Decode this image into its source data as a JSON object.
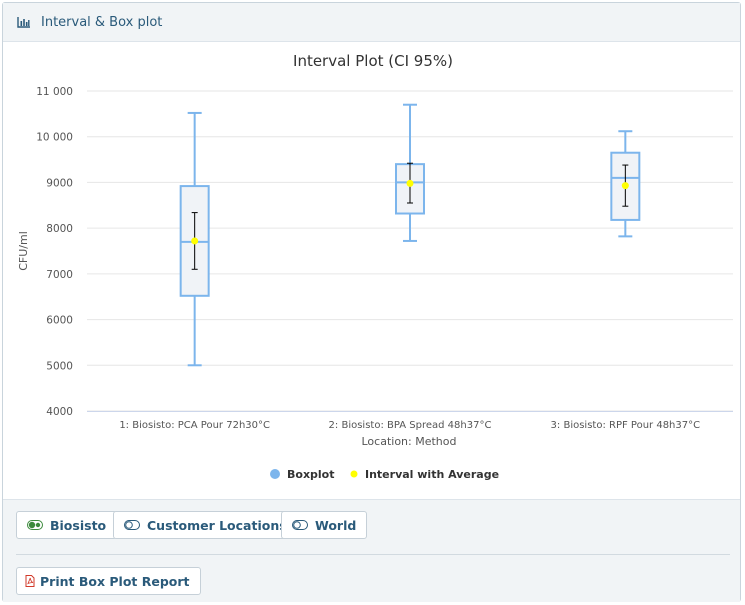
{
  "panel": {
    "title": "Interval & Box plot",
    "icon": "bar-chart-icon"
  },
  "chart_data": {
    "type": "box",
    "title": "Interval Plot (CI 95%)",
    "xlabel": "Location: Method",
    "ylabel": "CFU/ml",
    "ylim": [
      4000,
      11000
    ],
    "yticks": [
      4000,
      5000,
      6000,
      7000,
      8000,
      9000,
      10000,
      11000
    ],
    "ytick_labels": [
      "4000",
      "5000",
      "6000",
      "7000",
      "8000",
      "9000",
      "10 000",
      "11 000"
    ],
    "categories": [
      "1: Biosisto: PCA Pour 72h30°C",
      "2: Biosisto: BPA Spread 48h37°C",
      "3: Biosisto: RPF Pour 48h37°C"
    ],
    "series": [
      {
        "name": "Boxplot",
        "color": "#7cb5ec",
        "boxes": [
          {
            "min": 5000,
            "q1": 6520,
            "median": 7700,
            "q3": 8920,
            "max": 10520
          },
          {
            "min": 7720,
            "q1": 8320,
            "median": 9000,
            "q3": 9400,
            "max": 10700
          },
          {
            "min": 7820,
            "q1": 8180,
            "median": 9100,
            "q3": 9650,
            "max": 10120
          }
        ]
      },
      {
        "name": "Interval with Average",
        "color": "#ffff00",
        "intervals": [
          {
            "mean": 7720,
            "lower": 7100,
            "upper": 8340
          },
          {
            "mean": 8980,
            "lower": 8550,
            "upper": 9420
          },
          {
            "mean": 8930,
            "lower": 8480,
            "upper": 9380
          }
        ]
      }
    ],
    "legend": [
      "Boxplot",
      "Interval with Average"
    ],
    "legend_position": "bottom-center",
    "grid": true
  },
  "filters": [
    {
      "label": "Biosisto",
      "icon": "toggle-on-icon",
      "active": true
    },
    {
      "label": "Customer Locations",
      "icon": "toggle-off-icon",
      "active": false
    },
    {
      "label": "World",
      "icon": "toggle-off-icon",
      "active": false
    }
  ],
  "report_button": {
    "label": "Print Box Plot Report",
    "icon": "pdf-file-icon"
  }
}
